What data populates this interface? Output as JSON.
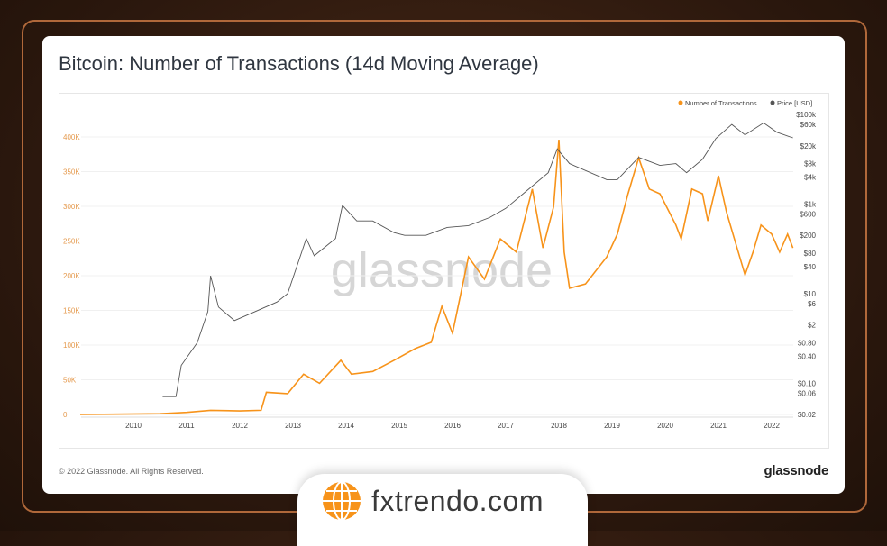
{
  "title": "Bitcoin: Number of Transactions (14d Moving Average)",
  "footer": {
    "copyright": "© 2022 Glassnode. All Rights Reserved.",
    "brand": "glassnode"
  },
  "watermark": "glassnode",
  "badge": {
    "site": "fxtrendo.com",
    "icon": "globe-icon"
  },
  "colors": {
    "transactions": "#f7931a",
    "price": "#555555",
    "left_ticks": "#e59a4e"
  },
  "chart_data": {
    "type": "line",
    "title": "Bitcoin: Number of Transactions (14d Moving Average)",
    "legend_placement": "top-right",
    "grid": true,
    "x": {
      "ticks": [
        "2010",
        "2011",
        "2012",
        "2013",
        "2014",
        "2015",
        "2016",
        "2017",
        "2018",
        "2019",
        "2020",
        "2021",
        "2022"
      ],
      "range": [
        2009.0,
        2022.4
      ]
    },
    "y_left": {
      "ticks": [
        "0",
        "50K",
        "100K",
        "150K",
        "200K",
        "250K",
        "300K",
        "350K",
        "400K"
      ],
      "range": [
        0,
        400000
      ]
    },
    "y_right": {
      "scale": "log",
      "ticks": [
        "$0.02",
        "$0.06",
        "$0.10",
        "$0.40",
        "$0.80",
        "$2",
        "$6",
        "$10",
        "$40",
        "$80",
        "$200",
        "$600",
        "$1k",
        "$4k",
        "$8k",
        "$20k",
        "$60k",
        "$100k"
      ],
      "tick_values": [
        0.02,
        0.06,
        0.1,
        0.4,
        0.8,
        2,
        6,
        10,
        40,
        80,
        200,
        600,
        1000,
        4000,
        8000,
        20000,
        60000,
        100000
      ],
      "range": [
        0.02,
        100000
      ]
    },
    "series": [
      {
        "name": "Number of Transactions",
        "axis": "left",
        "points": [
          [
            2009.0,
            0
          ],
          [
            2010.5,
            1000
          ],
          [
            2011.0,
            3000
          ],
          [
            2011.45,
            6000
          ],
          [
            2012.0,
            5000
          ],
          [
            2012.4,
            6000
          ],
          [
            2012.5,
            32000
          ],
          [
            2012.9,
            30000
          ],
          [
            2013.2,
            58000
          ],
          [
            2013.5,
            45000
          ],
          [
            2013.9,
            78000
          ],
          [
            2014.1,
            58000
          ],
          [
            2014.5,
            62000
          ],
          [
            2014.9,
            78000
          ],
          [
            2015.3,
            95000
          ],
          [
            2015.6,
            104000
          ],
          [
            2015.8,
            156000
          ],
          [
            2016.0,
            117000
          ],
          [
            2016.3,
            227000
          ],
          [
            2016.6,
            195000
          ],
          [
            2016.9,
            253000
          ],
          [
            2017.2,
            234000
          ],
          [
            2017.5,
            325000
          ],
          [
            2017.7,
            240000
          ],
          [
            2017.9,
            299000
          ],
          [
            2018.0,
            396000
          ],
          [
            2018.1,
            234000
          ],
          [
            2018.2,
            182000
          ],
          [
            2018.5,
            188000
          ],
          [
            2018.9,
            227000
          ],
          [
            2019.1,
            260000
          ],
          [
            2019.3,
            318000
          ],
          [
            2019.5,
            370000
          ],
          [
            2019.7,
            325000
          ],
          [
            2019.9,
            318000
          ],
          [
            2020.2,
            273000
          ],
          [
            2020.3,
            253000
          ],
          [
            2020.5,
            325000
          ],
          [
            2020.7,
            318000
          ],
          [
            2020.8,
            279000
          ],
          [
            2021.0,
            344000
          ],
          [
            2021.15,
            292000
          ],
          [
            2021.3,
            253000
          ],
          [
            2021.5,
            201000
          ],
          [
            2021.65,
            234000
          ],
          [
            2021.8,
            273000
          ],
          [
            2022.0,
            260000
          ],
          [
            2022.15,
            234000
          ],
          [
            2022.3,
            260000
          ],
          [
            2022.4,
            240000
          ]
        ]
      },
      {
        "name": "Price [USD]",
        "axis": "right",
        "points": [
          [
            2010.55,
            0.05
          ],
          [
            2010.8,
            0.05
          ],
          [
            2010.9,
            0.25
          ],
          [
            2011.2,
            0.8
          ],
          [
            2011.4,
            4
          ],
          [
            2011.45,
            25
          ],
          [
            2011.6,
            5
          ],
          [
            2011.9,
            2.5
          ],
          [
            2012.3,
            4
          ],
          [
            2012.7,
            6.5
          ],
          [
            2012.9,
            10
          ],
          [
            2013.25,
            170
          ],
          [
            2013.4,
            70
          ],
          [
            2013.8,
            170
          ],
          [
            2013.93,
            930
          ],
          [
            2014.2,
            420
          ],
          [
            2014.5,
            420
          ],
          [
            2014.9,
            230
          ],
          [
            2015.1,
            200
          ],
          [
            2015.5,
            200
          ],
          [
            2015.9,
            300
          ],
          [
            2016.3,
            330
          ],
          [
            2016.7,
            500
          ],
          [
            2017.0,
            800
          ],
          [
            2017.4,
            2000
          ],
          [
            2017.8,
            5000
          ],
          [
            2017.97,
            17000
          ],
          [
            2018.2,
            8000
          ],
          [
            2018.9,
            3500
          ],
          [
            2019.1,
            3500
          ],
          [
            2019.5,
            11000
          ],
          [
            2019.9,
            7300
          ],
          [
            2020.2,
            8000
          ],
          [
            2020.4,
            5000
          ],
          [
            2020.7,
            10000
          ],
          [
            2020.95,
            29000
          ],
          [
            2021.25,
            60000
          ],
          [
            2021.5,
            35000
          ],
          [
            2021.85,
            65000
          ],
          [
            2022.1,
            40000
          ],
          [
            2022.4,
            30000
          ]
        ]
      }
    ]
  }
}
